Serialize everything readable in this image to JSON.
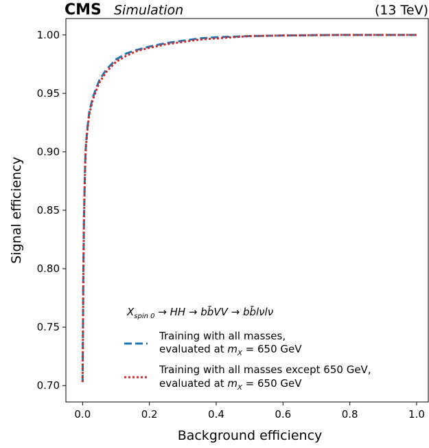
{
  "chart_data": {
    "type": "line",
    "header": {
      "experiment": "CMS",
      "tag": "Simulation",
      "energy": "(13 TeV)"
    },
    "xlabel": "Background efficiency",
    "ylabel": "Signal efficiency",
    "xlim": [
      -0.05,
      1.035
    ],
    "ylim": [
      0.686,
      1.014
    ],
    "xticks": [
      0.0,
      0.2,
      0.4,
      0.6,
      0.8,
      1.0
    ],
    "xtick_labels": [
      "0.0",
      "0.2",
      "0.4",
      "0.6",
      "0.8",
      "1.0"
    ],
    "yticks": [
      0.7,
      0.75,
      0.8,
      0.85,
      0.9,
      0.95,
      1.0
    ],
    "ytick_labels": [
      "0.70",
      "0.75",
      "0.80",
      "0.85",
      "0.90",
      "0.95",
      "1.00"
    ],
    "grid": false,
    "legend": {
      "placement": "lower-right",
      "title": "X_spin 0 → HH → bb̄VV → bb̄lνlν",
      "entries": [
        {
          "lines": [
            "Training with all masses,",
            "evaluated at m_X = 650 GeV"
          ]
        },
        {
          "lines": [
            "Training with all masses except 650 GeV,",
            "evaluated at m_X = 650 GeV"
          ]
        }
      ]
    },
    "series": [
      {
        "style": "dashed",
        "color": "#1f77b4",
        "x": [
          0.0,
          0.001,
          0.002,
          0.004,
          0.006,
          0.008,
          0.01,
          0.015,
          0.02,
          0.03,
          0.04,
          0.05,
          0.07,
          0.1,
          0.13,
          0.16,
          0.2,
          0.25,
          0.3,
          0.35,
          0.4,
          0.5,
          0.6,
          0.7,
          0.8,
          0.9,
          1.0
        ],
        "y": [
          0.703,
          0.74,
          0.79,
          0.84,
          0.87,
          0.893,
          0.906,
          0.922,
          0.934,
          0.946,
          0.954,
          0.961,
          0.97,
          0.979,
          0.984,
          0.987,
          0.99,
          0.993,
          0.995,
          0.997,
          0.998,
          0.999,
          0.9995,
          0.9998,
          1.0,
          1.0,
          1.0
        ]
      },
      {
        "style": "dotted",
        "color": "#d62728",
        "x": [
          0.0,
          0.001,
          0.002,
          0.004,
          0.006,
          0.008,
          0.01,
          0.015,
          0.02,
          0.03,
          0.04,
          0.05,
          0.07,
          0.1,
          0.13,
          0.16,
          0.2,
          0.25,
          0.3,
          0.35,
          0.4,
          0.5,
          0.6,
          0.7,
          0.8,
          0.9,
          1.0
        ],
        "y": [
          0.703,
          0.738,
          0.787,
          0.838,
          0.868,
          0.891,
          0.904,
          0.92,
          0.932,
          0.944,
          0.952,
          0.959,
          0.968,
          0.977,
          0.982,
          0.986,
          0.989,
          0.992,
          0.994,
          0.996,
          0.997,
          0.999,
          0.9995,
          0.9998,
          1.0,
          1.0,
          1.0
        ]
      }
    ]
  }
}
